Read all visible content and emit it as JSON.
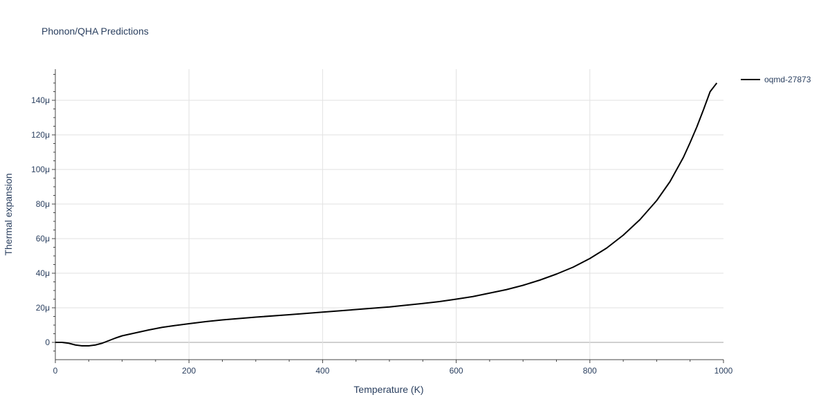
{
  "chart_data": {
    "type": "line",
    "title": "Phonon/QHA Predictions",
    "xlabel": "Temperature (K)",
    "ylabel": "Thermal expansion",
    "xlim": [
      0,
      1000
    ],
    "ylim": [
      -10,
      158
    ],
    "x_ticks": [
      {
        "value": 0,
        "label": "0"
      },
      {
        "value": 200,
        "label": "200"
      },
      {
        "value": 400,
        "label": "400"
      },
      {
        "value": 600,
        "label": "600"
      },
      {
        "value": 800,
        "label": "800"
      },
      {
        "value": 1000,
        "label": "1000"
      }
    ],
    "y_ticks": [
      {
        "value": 0,
        "label": "0"
      },
      {
        "value": 20,
        "label": "20μ"
      },
      {
        "value": 40,
        "label": "40μ"
      },
      {
        "value": 60,
        "label": "60μ"
      },
      {
        "value": 80,
        "label": "80μ"
      },
      {
        "value": 100,
        "label": "100μ"
      },
      {
        "value": 120,
        "label": "120μ"
      },
      {
        "value": 140,
        "label": "140μ"
      }
    ],
    "grid": true,
    "legend_position": "top-right",
    "series": [
      {
        "name": "oqmd-27873",
        "color": "#000000",
        "x": [
          0,
          10,
          20,
          30,
          40,
          50,
          60,
          70,
          80,
          90,
          100,
          120,
          140,
          160,
          180,
          200,
          225,
          250,
          275,
          300,
          350,
          400,
          450,
          500,
          550,
          575,
          600,
          625,
          650,
          675,
          700,
          725,
          750,
          775,
          800,
          825,
          850,
          875,
          900,
          920,
          940,
          950,
          960,
          970,
          980,
          990
        ],
        "y": [
          0,
          0,
          -0.5,
          -1.5,
          -2,
          -2,
          -1.5,
          -0.5,
          1,
          2.5,
          3.8,
          5.5,
          7.2,
          8.7,
          9.8,
          10.8,
          12,
          13,
          13.8,
          14.6,
          16,
          17.5,
          19,
          20.5,
          22.5,
          23.6,
          25,
          26.5,
          28.5,
          30.5,
          33,
          36,
          39.5,
          43.5,
          48.5,
          54.5,
          62,
          71,
          82,
          93,
          107,
          115.5,
          124.5,
          134.5,
          145,
          150
        ]
      }
    ]
  }
}
